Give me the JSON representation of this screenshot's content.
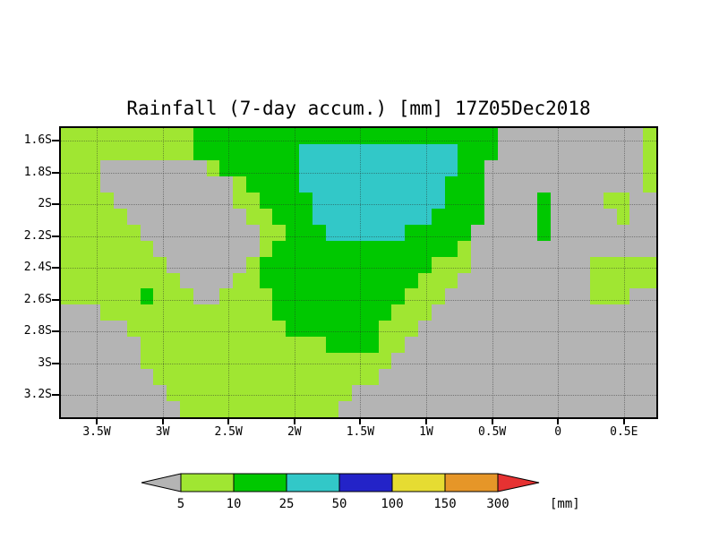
{
  "chart": {
    "title": "Rainfall (7-day accum.) [mm] 17Z05Dec2018"
  },
  "chart_data": {
    "type": "heatmap",
    "title": "Rainfall (7-day accum.) [mm] 17Z05Dec2018",
    "unit": "[mm]",
    "x_tick_labels": [
      "3.5W",
      "3W",
      "2.5W",
      "2W",
      "1.5W",
      "1W",
      "0.5W",
      "0",
      "0.5E"
    ],
    "y_tick_labels": [
      "1.6S",
      "1.8S",
      "2S",
      "2.2S",
      "2.4S",
      "2.6S",
      "2.8S",
      "3S",
      "3.2S"
    ],
    "color_key": {
      "G": {
        "color": "#b4b4b4",
        "range_mm": "< 5"
      },
      "Y": {
        "color": "#a0e632",
        "range_mm": "5-10"
      },
      "N": {
        "color": "#00c800",
        "range_mm": "10-25"
      },
      "C": {
        "color": "#32c8c8",
        "range_mm": "25-50"
      }
    },
    "grid_rows": [
      "YYYYYYYYYYNNNNNNNNNNNNNNNNNNNNNNNGGGGGGGGGGGY",
      "YYYYYYYYYYNNNNNNNNCCCCCCCCCCCCNNNGGGGGGGGGGGY",
      "YYYGGGGGGGGYNNNNNNCCCCCCCCCCCCNNGGGGGGGGGGGGY",
      "YYYGGGGGGGGGGYNNNNCCCCCCCCCCCNNNGGGGGGGGGGGGY",
      "YYYYGGGGGGGGGYYNNNNCCCCCCCCCCNNNGGGGNGGGGYYGG",
      "YYYYYGGGGGGGGGYYNNNCCCCCCCCCNNNNGGGGNGGGGGYGG",
      "YYYYYYGGGGGGGGGYYNNNCCCCCCNNNNNGGGGGNGGGGGGGG",
      "YYYYYYYGGGGGGGGYNNNNNNNNNNNNNNYGGGGGGGGGGGGGG",
      "YYYYYYYYGGGGGGYNNNNNNNNNNNNNYYYGGGGGGGGGYYYYY",
      "YYYYYYYYYGGGGYYNNNNNNNNNNNNYYYGGGGGGGGGGYYYYY",
      "YYYYYYNYYYGGYYYYNNNNNNNNNNYYYGGGGGGGGGGGYYYGG",
      "GGGYYYYYYYYYYYYYNNNNNNNNNYYYGGGGGGGGGGGGGGGGG",
      "GGGGGYYYYYYYYYYYYNNNNNNNYYYGGGGGGGGGGGGGGGGGG",
      "GGGGGGYYYYYYYYYYYYYYNNNNYYGGGGGGGGGGGGGGGGGGG",
      "GGGGGGYYYYYYYYYYYYYYYYYYYGGGGGGGGGGGGGGGGGGGG",
      "GGGGGGGYYYYYYYYYYYYYYYYYGGGGGGGGGGGGGGGGGGGGG",
      "GGGGGGGGYYYYYYYYYYYYYYGGGGGGGGGGGGGGGGGGGGGGG",
      "GGGGGGGGGYYYYYYYYYYYYGGGGGGGGGGGGGGGGGGGGGGGG"
    ],
    "legend": {
      "thresholds": [
        "5",
        "10",
        "25",
        "50",
        "100",
        "150",
        "300"
      ],
      "colors": [
        "#b4b4b4",
        "#a0e632",
        "#00c800",
        "#32c8c8",
        "#2323c8",
        "#e6dc32",
        "#e69628",
        "#e63232"
      ],
      "unit_label": "[mm]"
    }
  }
}
